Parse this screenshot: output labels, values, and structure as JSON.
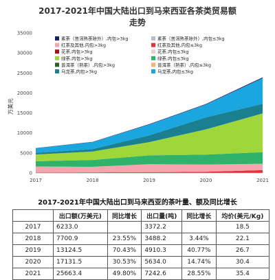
{
  "chart_data": {
    "type": "area",
    "stacked": true,
    "title_line1": "2017-2021年中国大陆出口到马来西亚各茶类贸易额",
    "title_line2": "走势",
    "ylabel": "万美元",
    "xlabel": "",
    "x": [
      "2017",
      "2018",
      "2019",
      "2020",
      "2021"
    ],
    "ylim": [
      0,
      35000
    ],
    "yticks": [
      0,
      5000,
      10000,
      15000,
      20000,
      25000,
      30000,
      35000
    ],
    "grid": false,
    "legend_position": "top",
    "series": [
      {
        "name": "红茶及其他,内包≤3kg",
        "color": "#e8303a",
        "values": [
          120,
          150,
          200,
          300,
          700
        ]
      },
      {
        "name": "红茶及其他,内包>3kg",
        "color": "#f6a5ae",
        "values": [
          1500,
          1400,
          2000,
          1800,
          1600
        ]
      },
      {
        "name": "绿茶,内包≤3kg",
        "color": "#2fb36b",
        "values": [
          1300,
          1700,
          2200,
          2500,
          2900
        ]
      },
      {
        "name": "绿茶,内包>3kg",
        "color": "#9fd63a",
        "values": [
          1700,
          2100,
          3300,
          6300,
          9700
        ]
      },
      {
        "name": "乌龙茶,内包>3kg",
        "color": "#1a7f8f",
        "values": [
          400,
          600,
          1700,
          3000,
          2400
        ]
      },
      {
        "name": "乌龙茶,内包≤3kg",
        "color": "#1aa7e0",
        "values": [
          1150,
          1750,
          2700,
          3200,
          6400
        ]
      },
      {
        "name": "素茶（普洱熟茶除外）,内包>3kg",
        "color": "#1b1f6e",
        "values": [
          60,
          80,
          100,
          150,
          200
        ]
      }
    ],
    "legend": [
      {
        "label": "素茶（普洱熟茶除外）,内包>3kg",
        "color": "#1b1f6e"
      },
      {
        "label": "素茶（普洱熟茶除外）,内包≤3kg",
        "color": "#b9bcc8"
      },
      {
        "label": "红茶及其他,内包>3kg",
        "color": "#f6a5ae"
      },
      {
        "label": "红茶及其他,内包≤3kg",
        "color": "#e8303a"
      },
      {
        "label": "花茶,内包>3kg",
        "color": "#a8121a"
      },
      {
        "label": "花茶,内包≤3kg",
        "color": "#f2c9cc"
      },
      {
        "label": "绿茶,内包>3kg",
        "color": "#9fd63a"
      },
      {
        "label": "绿茶,内包≤3kg",
        "color": "#2fb36b"
      },
      {
        "label": "普洱茶（熟茶）,内包>3kg",
        "color": "#2e5f2a"
      },
      {
        "label": "普洱茶（熟茶）,内包≤3kg",
        "color": "#f5b36b"
      },
      {
        "label": "乌龙茶,内包>3kg",
        "color": "#1a7f8f"
      },
      {
        "label": "乌龙茶,内包≤3kg",
        "color": "#1aa7e0"
      }
    ]
  },
  "table": {
    "title": "2017-2021年中国大陆出口到马来西亚的茶叶量、额及同比增长",
    "headers": [
      "",
      "出口额(万美元)",
      "同比增长",
      "出口量(吨)",
      "同比增长",
      "均价(美元/Kg)"
    ],
    "rows": [
      {
        "year": "2017",
        "value": "6233.0",
        "value_growth": "",
        "volume": "3372.2",
        "volume_growth": "",
        "price": "18.5"
      },
      {
        "year": "2018",
        "value": "7700.9",
        "value_growth": "23.55%",
        "volume": "3488.2",
        "volume_growth": "3.44%",
        "price": "22.1"
      },
      {
        "year": "2019",
        "value": "13124.5",
        "value_growth": "70.43%",
        "volume": "4910.3",
        "volume_growth": "40.77%",
        "price": "26.7"
      },
      {
        "year": "2020",
        "value": "17131.5",
        "value_growth": "30.53%",
        "volume": "5634.0",
        "volume_growth": "14.74%",
        "price": "30.4"
      },
      {
        "year": "2021",
        "value": "25663.4",
        "value_growth": "49.80%",
        "volume": "7242.6",
        "volume_growth": "28.55%",
        "price": "35.4"
      }
    ]
  }
}
